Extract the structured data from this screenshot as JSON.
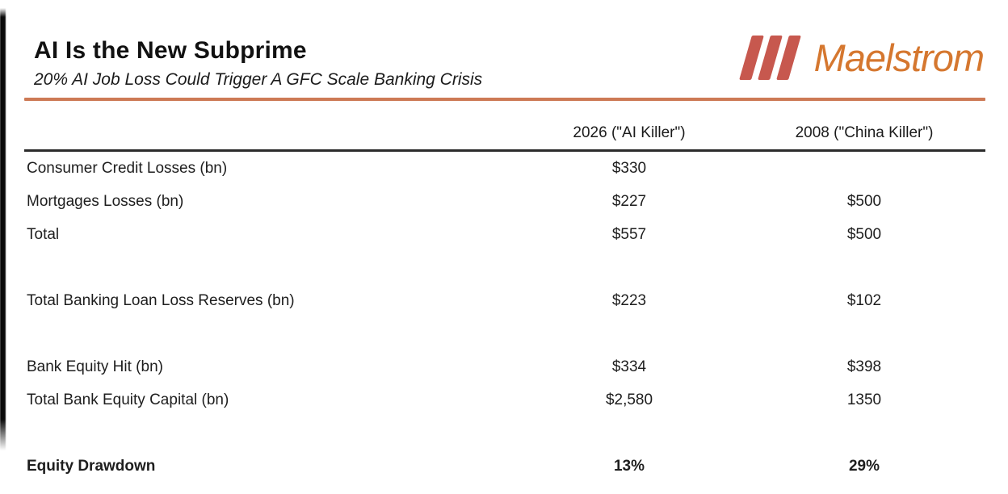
{
  "header": {
    "title": "AI Is the New Subprime",
    "subtitle": "20% AI Job Loss Could Trigger A GFC Scale Banking Crisis"
  },
  "logo": {
    "name": "Maelstrom",
    "bars_icon": "three-slanted-bars-icon",
    "bar_color": "#c7584e",
    "text_color": "#d5772f"
  },
  "colors": {
    "accent_rule": "#cd7a55",
    "header_rule": "#2b2b2b"
  },
  "table": {
    "columns": [
      "",
      "2026 (\"AI Killer\")",
      "2008 (\"China Killer\")"
    ],
    "rows": [
      {
        "label": "Consumer Credit Losses (bn)",
        "col1": "$330",
        "col2": ""
      },
      {
        "label": "Mortgages Losses (bn)",
        "col1": "$227",
        "col2": "$500"
      },
      {
        "label": "Total",
        "col1": "$557",
        "col2": "$500"
      },
      {
        "spacer": true
      },
      {
        "label": "Total Banking Loan Loss Reserves (bn)",
        "col1": "$223",
        "col2": "$102"
      },
      {
        "spacer": true
      },
      {
        "label": "Bank Equity Hit (bn)",
        "col1": "$334",
        "col2": "$398"
      },
      {
        "label": "Total Bank Equity Capital (bn)",
        "col1": "$2,580",
        "col2": "1350"
      },
      {
        "spacer": true
      },
      {
        "label": "Equity Drawdown",
        "col1": "13%",
        "col2": "29%",
        "bold": true
      }
    ]
  }
}
